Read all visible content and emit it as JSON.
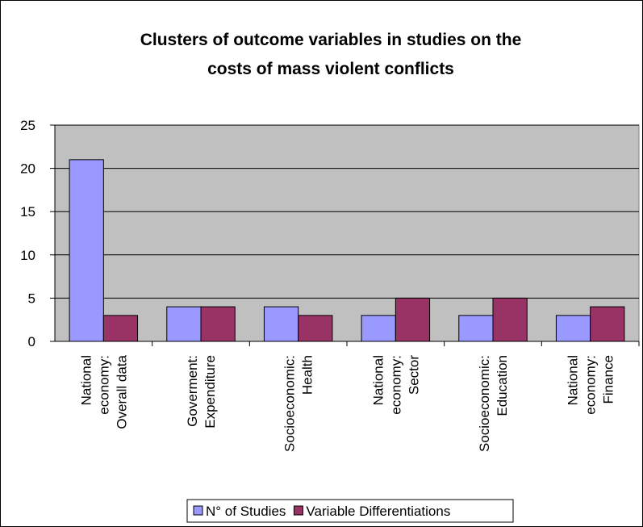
{
  "chart_data": {
    "type": "bar",
    "title": [
      "Clusters of outcome variables in studies on the",
      "costs of mass violent conflicts"
    ],
    "categories": [
      [
        "National",
        "economy:",
        "Overall data"
      ],
      [
        "Goverment:",
        "Expenditure"
      ],
      [
        "Socioeconomic:",
        "Health"
      ],
      [
        "National",
        "economy:",
        "Sector"
      ],
      [
        "Socioeconomic:",
        "Education"
      ],
      [
        "National",
        "economy:",
        "Finance"
      ]
    ],
    "series": [
      {
        "name": "N° of Studies",
        "color": "#9999ff",
        "values": [
          21,
          4,
          4,
          3,
          3,
          3
        ]
      },
      {
        "name": "Variable Differentiations",
        "color": "#993366",
        "values": [
          3,
          4,
          3,
          5,
          5,
          4
        ]
      }
    ],
    "ylim": [
      0,
      25
    ],
    "yticks": [
      0,
      5,
      10,
      15,
      20,
      25
    ],
    "grid": true,
    "legend": "bottom",
    "plot_background": "#c0c0c0"
  }
}
